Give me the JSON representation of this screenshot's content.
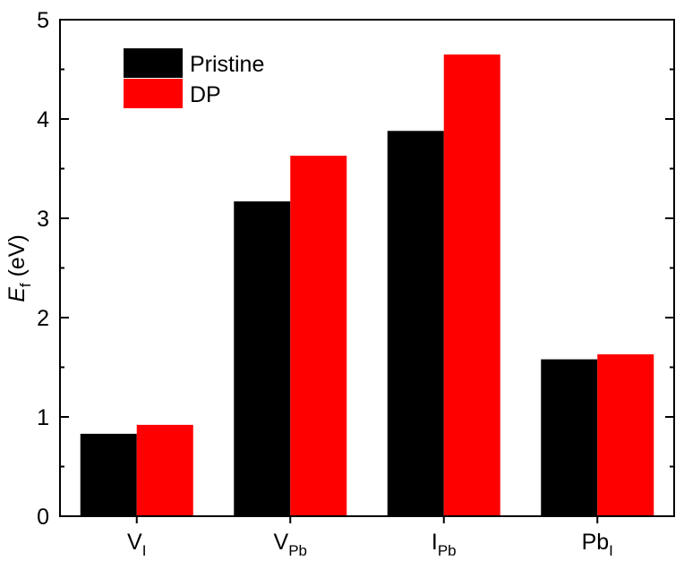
{
  "chart_data": {
    "type": "bar",
    "categories": [
      {
        "base": "V",
        "sub": "I"
      },
      {
        "base": "V",
        "sub": "Pb"
      },
      {
        "base": "I",
        "sub": "Pb"
      },
      {
        "base": "Pb",
        "sub": "I"
      }
    ],
    "series": [
      {
        "name": "Pristine",
        "color": "#000000",
        "values": [
          0.83,
          3.17,
          3.88,
          1.58
        ]
      },
      {
        "name": "DP",
        "color": "#ff0000",
        "values": [
          0.92,
          3.63,
          4.65,
          1.63
        ]
      }
    ],
    "ylabel": {
      "symbol": "E",
      "sub": "f",
      "unit": " (eV)"
    },
    "ylim": [
      0,
      5
    ],
    "yticks": [
      "0",
      "1",
      "2",
      "3",
      "4",
      "5"
    ],
    "legend_position": "top-left",
    "grid": false
  }
}
